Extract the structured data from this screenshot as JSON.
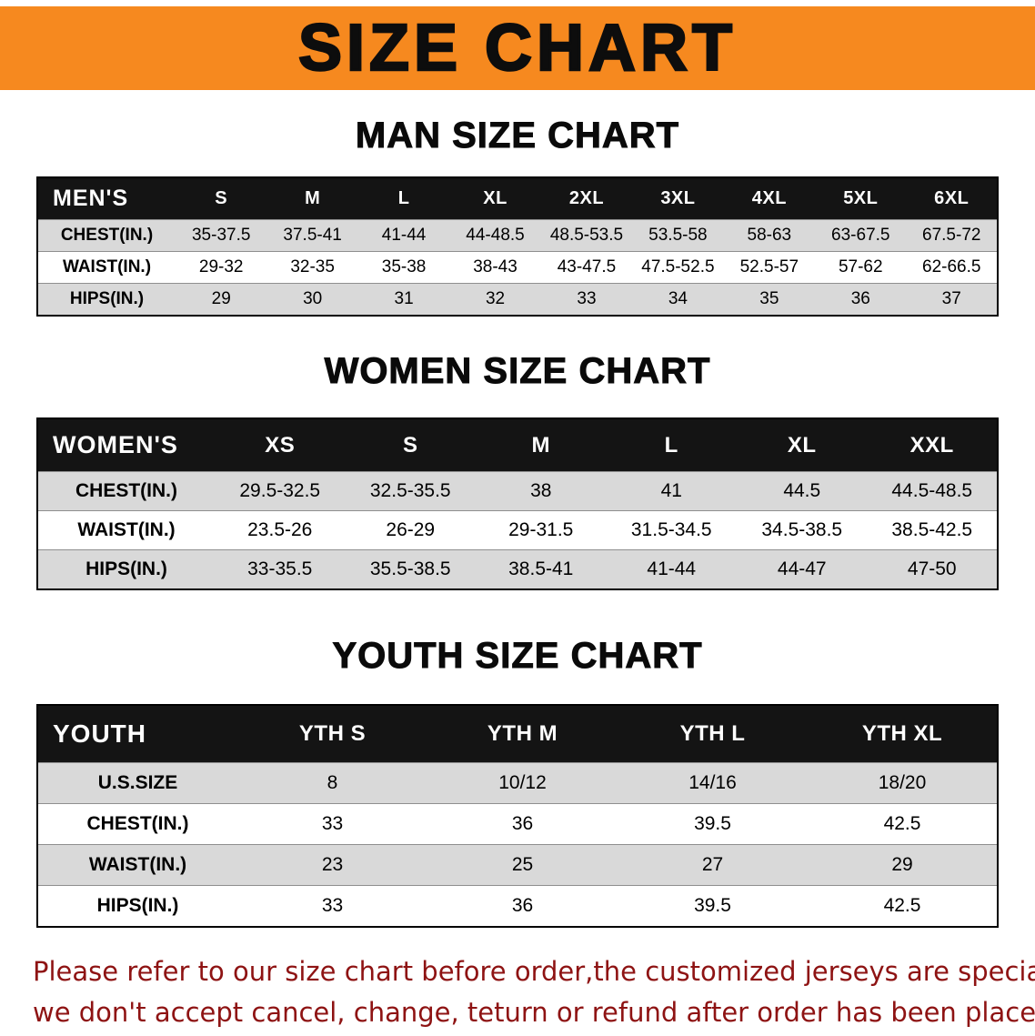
{
  "banner": {
    "title": "SIZE CHART"
  },
  "colors": {
    "banner_bg": "#f6891f",
    "table_header_bg": "#141414",
    "row_shaded_bg": "#d9d9d9",
    "notice_text": "#8e1313"
  },
  "sections": [
    {
      "id": "men",
      "heading": "MAN SIZE CHART",
      "table": {
        "header_label": "MEN'S",
        "columns": [
          "S",
          "M",
          "L",
          "XL",
          "2XL",
          "3XL",
          "4XL",
          "5XL",
          "6XL"
        ],
        "rows": [
          {
            "label": "CHEST(IN.)",
            "values": [
              "35-37.5",
              "37.5-41",
              "41-44",
              "44-48.5",
              "48.5-53.5",
              "53.5-58",
              "58-63",
              "63-67.5",
              "67.5-72"
            ]
          },
          {
            "label": "WAIST(IN.)",
            "values": [
              "29-32",
              "32-35",
              "35-38",
              "38-43",
              "43-47.5",
              "47.5-52.5",
              "52.5-57",
              "57-62",
              "62-66.5"
            ]
          },
          {
            "label": "HIPS(IN.)",
            "values": [
              "29",
              "30",
              "31",
              "32",
              "33",
              "34",
              "35",
              "36",
              "37"
            ]
          }
        ]
      }
    },
    {
      "id": "women",
      "heading": "WOMEN SIZE CHART",
      "table": {
        "header_label": "WOMEN'S",
        "columns": [
          "XS",
          "S",
          "M",
          "L",
          "XL",
          "XXL"
        ],
        "rows": [
          {
            "label": "CHEST(IN.)",
            "values": [
              "29.5-32.5",
              "32.5-35.5",
              "38",
              "41",
              "44.5",
              "44.5-48.5"
            ]
          },
          {
            "label": "WAIST(IN.)",
            "values": [
              "23.5-26",
              "26-29",
              "29-31.5",
              "31.5-34.5",
              "34.5-38.5",
              "38.5-42.5"
            ]
          },
          {
            "label": "HIPS(IN.)",
            "values": [
              "33-35.5",
              "35.5-38.5",
              "38.5-41",
              "41-44",
              "44-47",
              "47-50"
            ]
          }
        ]
      }
    },
    {
      "id": "youth",
      "heading": "YOUTH SIZE CHART",
      "table": {
        "header_label": "YOUTH",
        "columns": [
          "YTH S",
          "YTH M",
          "YTH L",
          "YTH XL"
        ],
        "rows": [
          {
            "label": "U.S.SIZE",
            "values": [
              "8",
              "10/12",
              "14/16",
              "18/20"
            ]
          },
          {
            "label": "CHEST(IN.)",
            "values": [
              "33",
              "36",
              "39.5",
              "42.5"
            ]
          },
          {
            "label": "WAIST(IN.)",
            "values": [
              "23",
              "25",
              "27",
              "29"
            ]
          },
          {
            "label": "HIPS(IN.)",
            "values": [
              "33",
              "36",
              "39.5",
              "42.5"
            ]
          }
        ]
      }
    }
  ],
  "footer": {
    "line1": "Please refer to our size chart before order,the customized jerseys are special products,",
    "line2": "we don't accept cancel, change, teturn or refund after order has been placed!"
  }
}
